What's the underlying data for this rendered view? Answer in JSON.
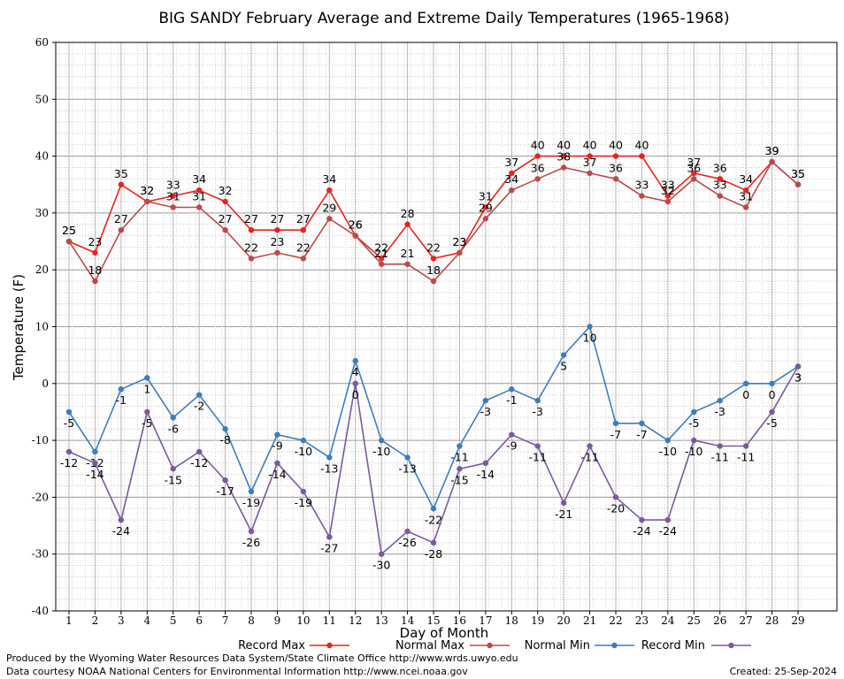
{
  "chart_data": {
    "type": "line",
    "title": "BIG SANDY February Average and Extreme Daily Temperatures (1965-1968)",
    "xlabel": "Day of Month",
    "ylabel": "Temperature (F)",
    "ylim": [
      -40,
      60
    ],
    "yticks": [
      -40,
      -30,
      -20,
      -10,
      0,
      10,
      20,
      30,
      40,
      50,
      60
    ],
    "x": [
      1,
      2,
      3,
      4,
      5,
      6,
      7,
      8,
      9,
      10,
      11,
      12,
      13,
      14,
      15,
      16,
      17,
      18,
      19,
      20,
      21,
      22,
      23,
      24,
      25,
      26,
      27,
      28,
      29
    ],
    "grid": true,
    "legend_position": "bottom",
    "series": [
      {
        "name": "Record Max",
        "color": "#e8231f",
        "values": [
          25,
          23,
          35,
          32,
          33,
          34,
          32,
          27,
          27,
          27,
          34,
          26,
          22,
          28,
          22,
          23,
          31,
          37,
          40,
          40,
          40,
          40,
          40,
          33,
          37,
          36,
          34,
          39,
          35
        ]
      },
      {
        "name": "Normal Max",
        "color": "#b94a4c",
        "values": [
          25,
          18,
          27,
          32,
          31,
          31,
          27,
          22,
          23,
          22,
          29,
          26,
          21,
          21,
          18,
          23,
          29,
          34,
          36,
          38,
          37,
          36,
          33,
          32,
          36,
          33,
          31,
          39,
          35
        ]
      },
      {
        "name": "Normal Min",
        "color": "#3f7db8",
        "values": [
          -5,
          -12,
          -1,
          1,
          -6,
          -2,
          -8,
          -19,
          -9,
          -10,
          -13,
          4,
          -10,
          -13,
          -22,
          -11,
          -3,
          -1,
          -3,
          5,
          10,
          -7,
          -7,
          -10,
          -5,
          -3,
          0,
          0,
          3
        ]
      },
      {
        "name": "Record Min",
        "color": "#7a5a9c",
        "values": [
          -12,
          -14,
          -24,
          -5,
          -15,
          -12,
          -17,
          -26,
          -14,
          -19,
          -27,
          0,
          -30,
          -26,
          -28,
          -15,
          -14,
          -9,
          -11,
          -21,
          -11,
          -20,
          -24,
          -24,
          -10,
          -11,
          -11,
          -5,
          3
        ]
      }
    ]
  },
  "footer": {
    "produced_by": "Produced by the Wyoming Water Resources Data System/State Climate Office http://www.wrds.uwyo.edu",
    "data_courtesy": "Data courtesy NOAA National Centers for Environmental Information http://www.ncei.noaa.gov",
    "created": "Created:  25-Sep-2024"
  }
}
